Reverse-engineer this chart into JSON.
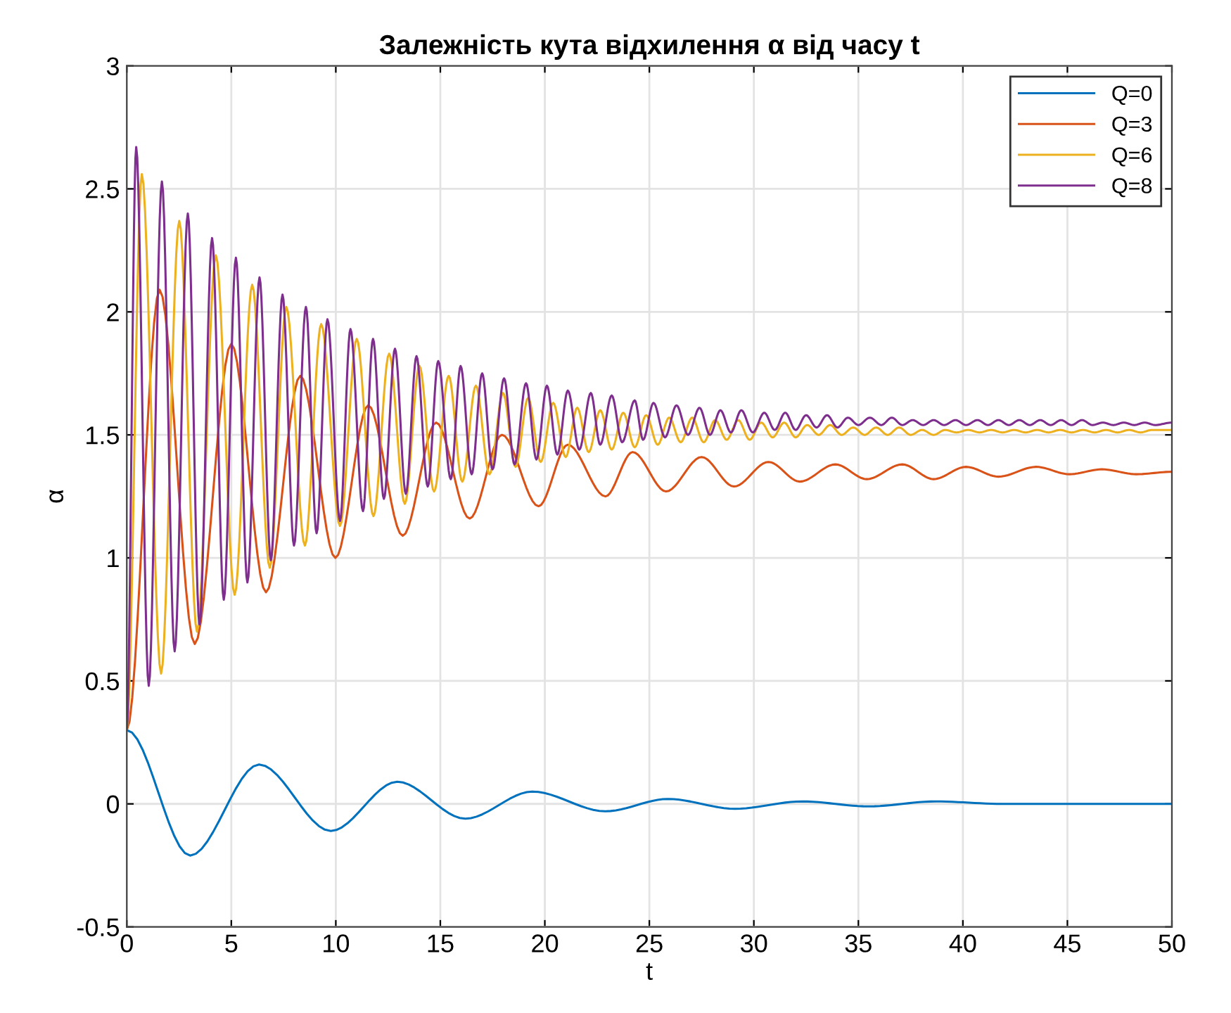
{
  "chart_data": {
    "type": "line",
    "title": "Залежність кута відхилення α від часу t",
    "xlabel": "t",
    "ylabel": "α",
    "xlim": [
      0,
      50
    ],
    "ylim": [
      -0.5,
      3
    ],
    "xticks": [
      0,
      5,
      10,
      15,
      20,
      25,
      30,
      35,
      40,
      45,
      50
    ],
    "yticks": [
      -0.5,
      0,
      0.5,
      1,
      1.5,
      2,
      2.5,
      3
    ],
    "grid": true,
    "legend": "top right",
    "line_style": "solid",
    "marker": "none",
    "series": [
      {
        "name": "Q=0",
        "color": "#0072bd",
        "x": [
          0,
          3.03,
          6.33,
          9.76,
          12.94,
          16.2,
          19.4,
          22.9,
          25.9,
          29.1,
          32.3,
          35.5,
          38.7,
          41.9,
          50
        ],
        "values": [
          0.3,
          -0.21,
          0.16,
          -0.11,
          0.09,
          -0.06,
          0.05,
          -0.03,
          0.02,
          -0.02,
          0.01,
          -0.01,
          0.01,
          0,
          0
        ]
      },
      {
        "name": "Q=3",
        "color": "#d95319",
        "x": [
          0,
          1.57,
          3.25,
          5.0,
          6.66,
          8.3,
          9.98,
          11.55,
          13.2,
          14.8,
          16.4,
          17.95,
          19.7,
          21.1,
          22.9,
          24.2,
          25.8,
          27.5,
          29.05,
          30.7,
          32.2,
          33.9,
          35.4,
          37.1,
          38.6,
          40.15,
          41.7,
          43.5,
          45.1,
          46.65,
          48.3,
          50
        ],
        "values": [
          0.3,
          2.09,
          0.65,
          1.87,
          0.86,
          1.74,
          1.0,
          1.62,
          1.09,
          1.55,
          1.16,
          1.5,
          1.21,
          1.46,
          1.25,
          1.43,
          1.27,
          1.41,
          1.29,
          1.39,
          1.31,
          1.38,
          1.32,
          1.38,
          1.32,
          1.37,
          1.33,
          1.37,
          1.34,
          1.36,
          1.34,
          1.35
        ]
      },
      {
        "name": "Q=6",
        "color": "#edb120",
        "x": [
          0,
          0.72,
          1.64,
          2.51,
          3.36,
          4.26,
          5.16,
          6.0,
          6.84,
          7.63,
          8.52,
          9.3,
          10.2,
          11.0,
          11.8,
          12.55,
          13.3,
          14.0,
          14.7,
          15.4,
          16.05,
          16.7,
          17.35,
          18.0,
          18.6,
          19.2,
          19.8,
          20.4,
          21.0,
          21.55,
          22.1,
          22.65,
          23.2,
          23.75,
          24.3,
          24.85,
          25.4,
          25.95,
          26.5,
          27.05,
          27.6,
          28.15,
          28.7,
          29.25,
          29.8,
          30.35,
          30.9,
          31.45,
          32.0,
          32.55,
          33.1,
          33.65,
          34.2,
          34.75,
          35.3,
          35.85,
          36.4,
          36.95,
          37.5,
          38.05,
          38.6,
          39.15,
          39.7,
          40.25,
          40.8,
          41.35,
          41.9,
          42.45,
          43.0,
          43.55,
          44.1,
          44.65,
          45.2,
          45.75,
          46.3,
          46.85,
          47.4,
          47.95,
          48.5,
          49.05,
          50
        ],
        "values": [
          0.3,
          2.56,
          0.53,
          2.37,
          0.7,
          2.23,
          0.85,
          2.11,
          0.96,
          2.02,
          1.05,
          1.95,
          1.13,
          1.89,
          1.17,
          1.83,
          1.22,
          1.78,
          1.27,
          1.74,
          1.31,
          1.7,
          1.34,
          1.67,
          1.37,
          1.65,
          1.39,
          1.63,
          1.41,
          1.61,
          1.43,
          1.6,
          1.44,
          1.59,
          1.45,
          1.58,
          1.46,
          1.57,
          1.47,
          1.57,
          1.47,
          1.56,
          1.48,
          1.56,
          1.48,
          1.55,
          1.49,
          1.55,
          1.49,
          1.54,
          1.5,
          1.54,
          1.5,
          1.53,
          1.5,
          1.53,
          1.5,
          1.53,
          1.5,
          1.52,
          1.5,
          1.52,
          1.51,
          1.52,
          1.51,
          1.52,
          1.51,
          1.52,
          1.51,
          1.52,
          1.51,
          1.52,
          1.51,
          1.52,
          1.51,
          1.52,
          1.51,
          1.52,
          1.51,
          1.52,
          1.52
        ]
      },
      {
        "name": "Q=8",
        "color": "#7e2f8e",
        "x": [
          0,
          0.45,
          1.05,
          1.68,
          2.29,
          2.92,
          3.48,
          4.08,
          4.64,
          5.22,
          5.77,
          6.35,
          6.89,
          7.45,
          8.0,
          8.57,
          9.08,
          9.6,
          10.2,
          10.7,
          11.3,
          11.78,
          12.3,
          12.83,
          13.35,
          13.86,
          14.4,
          14.9,
          15.5,
          15.97,
          16.5,
          17.0,
          17.5,
          18.05,
          18.55,
          19.1,
          19.6,
          20.1,
          20.6,
          21.1,
          21.65,
          22.2,
          22.65,
          23.2,
          23.7,
          24.3,
          24.7,
          25.2,
          25.75,
          26.3,
          26.85,
          27.4,
          27.9,
          28.4,
          28.9,
          29.4,
          29.95,
          30.5,
          31.0,
          31.5,
          32.0,
          32.5,
          33.0,
          33.5,
          34.0,
          34.5,
          35.0,
          35.55,
          36.1,
          36.6,
          37.1,
          37.6,
          38.1,
          38.6,
          39.1,
          39.65,
          40.15,
          40.7,
          41.2,
          41.7,
          42.2,
          42.7,
          43.2,
          43.7,
          44.2,
          44.7,
          45.2,
          45.7,
          46.2,
          46.7,
          47.2,
          47.7,
          48.2,
          48.7,
          49.2,
          50
        ],
        "values": [
          0.3,
          2.67,
          0.48,
          2.53,
          0.62,
          2.4,
          0.73,
          2.3,
          0.83,
          2.22,
          0.9,
          2.14,
          0.99,
          2.07,
          1.05,
          2.02,
          1.1,
          1.97,
          1.15,
          1.93,
          1.19,
          1.89,
          1.24,
          1.85,
          1.26,
          1.82,
          1.29,
          1.8,
          1.32,
          1.78,
          1.34,
          1.75,
          1.36,
          1.73,
          1.38,
          1.71,
          1.4,
          1.7,
          1.42,
          1.68,
          1.44,
          1.67,
          1.46,
          1.66,
          1.47,
          1.64,
          1.48,
          1.63,
          1.49,
          1.62,
          1.5,
          1.61,
          1.5,
          1.6,
          1.51,
          1.6,
          1.51,
          1.59,
          1.52,
          1.59,
          1.52,
          1.58,
          1.53,
          1.58,
          1.53,
          1.57,
          1.54,
          1.57,
          1.54,
          1.57,
          1.54,
          1.56,
          1.54,
          1.56,
          1.54,
          1.56,
          1.54,
          1.56,
          1.54,
          1.56,
          1.54,
          1.56,
          1.54,
          1.56,
          1.54,
          1.56,
          1.54,
          1.56,
          1.54,
          1.55,
          1.54,
          1.55,
          1.54,
          1.55,
          1.54,
          1.55
        ]
      }
    ]
  }
}
